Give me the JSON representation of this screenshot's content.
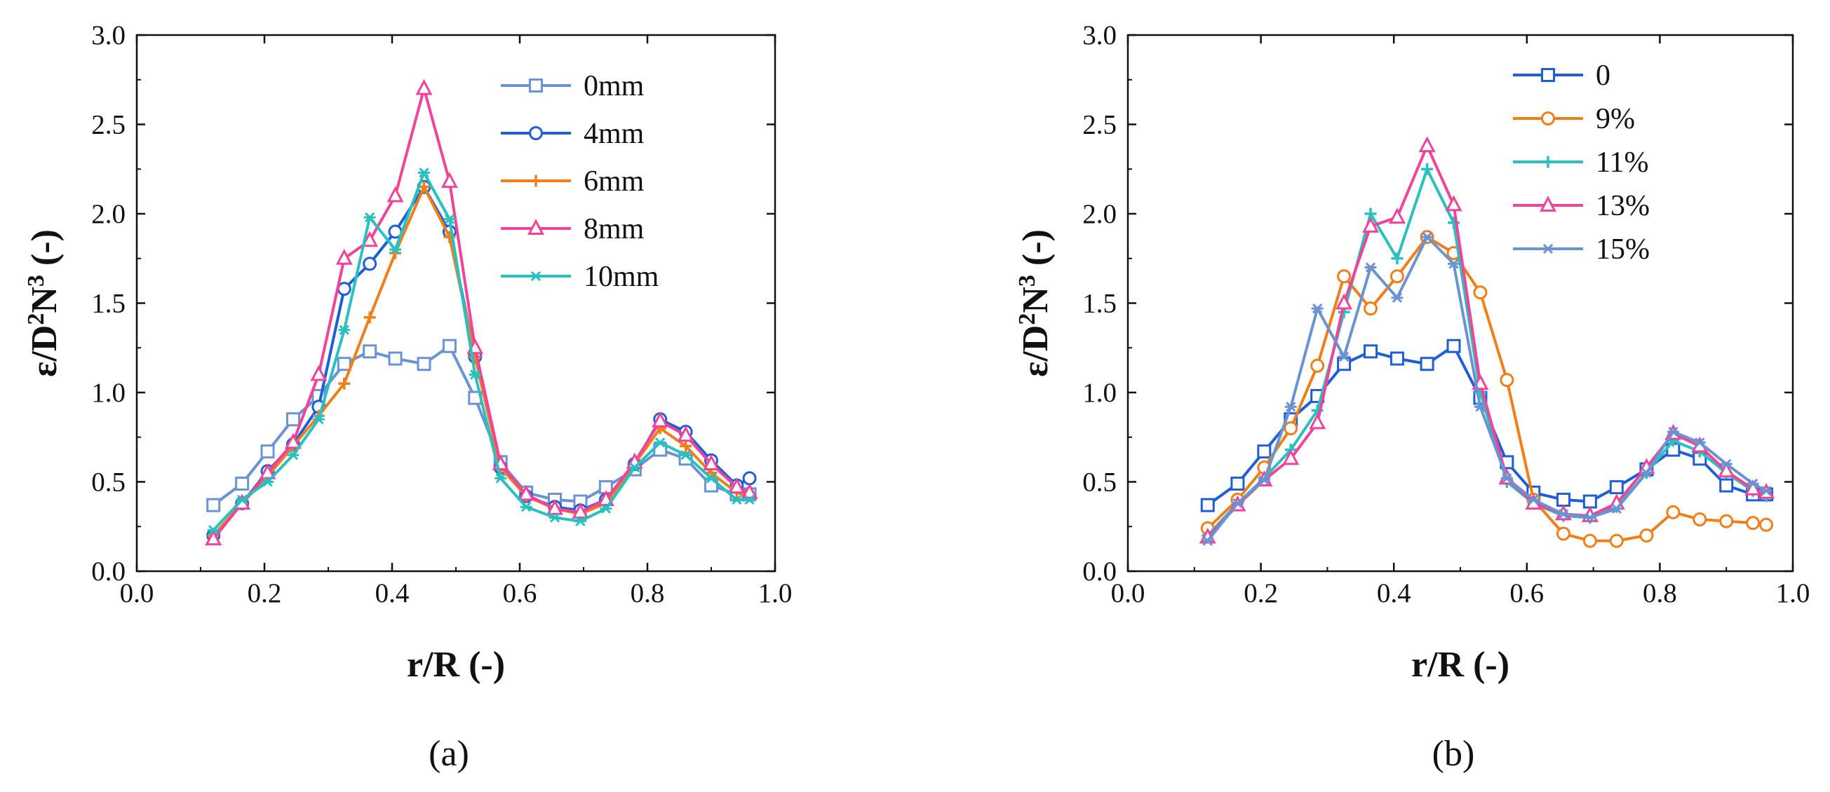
{
  "chart_data": [
    {
      "type": "line",
      "panel_label": "(a)",
      "xlabel": "r/R (-)",
      "ylabel_prefix": "ε/D",
      "ylabel_sup1": "2",
      "ylabel_mid": "N",
      "ylabel_sup2": "3",
      "ylabel_suffix": " (-)",
      "xlim": [
        0.0,
        1.0
      ],
      "ylim": [
        0.0,
        3.0
      ],
      "xticks": [
        "0.0",
        "0.2",
        "0.4",
        "0.6",
        "0.8",
        "1.0"
      ],
      "yticks": [
        "0.0",
        "0.5",
        "1.0",
        "1.5",
        "2.0",
        "2.5",
        "3.0"
      ],
      "legend_position": "top-right",
      "x": [
        0.12,
        0.165,
        0.205,
        0.245,
        0.285,
        0.325,
        0.365,
        0.405,
        0.45,
        0.49,
        0.53,
        0.57,
        0.61,
        0.655,
        0.695,
        0.735,
        0.78,
        0.82,
        0.86,
        0.9,
        0.94,
        0.96
      ],
      "series": [
        {
          "name": "0mm",
          "color": "#6a93d4",
          "marker": "square",
          "values": [
            0.37,
            0.49,
            0.67,
            0.85,
            0.98,
            1.16,
            1.23,
            1.19,
            1.16,
            1.26,
            0.97,
            0.61,
            0.44,
            0.4,
            0.39,
            0.47,
            0.57,
            0.68,
            0.63,
            0.48,
            0.43,
            0.43
          ]
        },
        {
          "name": "4mm",
          "color": "#1f5fd6",
          "marker": "circle",
          "values": [
            0.2,
            0.38,
            0.56,
            0.71,
            0.92,
            1.58,
            1.72,
            1.9,
            2.15,
            1.9,
            1.2,
            0.58,
            0.42,
            0.36,
            0.34,
            0.4,
            0.6,
            0.85,
            0.78,
            0.62,
            0.48,
            0.52
          ]
        },
        {
          "name": "6mm",
          "color": "#f07f1a",
          "marker": "plus",
          "values": [
            0.2,
            0.38,
            0.53,
            0.7,
            0.87,
            1.05,
            1.42,
            1.78,
            2.15,
            1.87,
            1.2,
            0.58,
            0.42,
            0.35,
            0.32,
            0.38,
            0.6,
            0.8,
            0.7,
            0.55,
            0.44,
            0.42
          ]
        },
        {
          "name": "8mm",
          "color": "#f0449a",
          "marker": "triangle",
          "values": [
            0.18,
            0.38,
            0.55,
            0.72,
            1.1,
            1.75,
            1.85,
            2.1,
            2.7,
            2.18,
            1.25,
            0.6,
            0.43,
            0.35,
            0.33,
            0.4,
            0.61,
            0.84,
            0.76,
            0.6,
            0.47,
            0.44
          ]
        },
        {
          "name": "10mm",
          "color": "#2ac0c0",
          "marker": "asterisk",
          "values": [
            0.23,
            0.4,
            0.5,
            0.65,
            0.85,
            1.35,
            1.98,
            1.8,
            2.23,
            1.97,
            1.1,
            0.52,
            0.36,
            0.3,
            0.28,
            0.35,
            0.58,
            0.72,
            0.65,
            0.52,
            0.4,
            0.4
          ]
        }
      ]
    },
    {
      "type": "line",
      "panel_label": "(b)",
      "xlabel": "r/R (-)",
      "ylabel_prefix": "ε/D",
      "ylabel_sup1": "2",
      "ylabel_mid": "N",
      "ylabel_sup2": "3",
      "ylabel_suffix": " (-)",
      "xlim": [
        0.0,
        1.0
      ],
      "ylim": [
        0.0,
        3.0
      ],
      "xticks": [
        "0.0",
        "0.2",
        "0.4",
        "0.6",
        "0.8",
        "1.0"
      ],
      "yticks": [
        "0.0",
        "0.5",
        "1.0",
        "1.5",
        "2.0",
        "2.5",
        "3.0"
      ],
      "legend_position": "top-right",
      "x": [
        0.12,
        0.165,
        0.205,
        0.245,
        0.285,
        0.325,
        0.365,
        0.405,
        0.45,
        0.49,
        0.53,
        0.57,
        0.61,
        0.655,
        0.695,
        0.735,
        0.78,
        0.82,
        0.86,
        0.9,
        0.94,
        0.96
      ],
      "series": [
        {
          "name": "0",
          "color": "#1f5fd6",
          "marker": "square",
          "values": [
            0.37,
            0.49,
            0.67,
            0.85,
            0.98,
            1.16,
            1.23,
            1.19,
            1.16,
            1.26,
            0.97,
            0.61,
            0.44,
            0.4,
            0.39,
            0.47,
            0.57,
            0.68,
            0.63,
            0.48,
            0.43,
            0.43
          ]
        },
        {
          "name": "9%",
          "color": "#f07f1a",
          "marker": "circle",
          "values": [
            0.24,
            0.4,
            0.58,
            0.8,
            1.15,
            1.65,
            1.47,
            1.65,
            1.87,
            1.78,
            1.56,
            1.07,
            0.4,
            0.21,
            0.17,
            0.17,
            0.2,
            0.33,
            0.29,
            0.28,
            0.27,
            0.26
          ]
        },
        {
          "name": "11%",
          "color": "#2ac0c0",
          "marker": "plus",
          "values": [
            0.2,
            0.38,
            0.52,
            0.68,
            0.9,
            1.45,
            2.0,
            1.75,
            2.25,
            1.95,
            1.0,
            0.5,
            0.38,
            0.31,
            0.3,
            0.36,
            0.55,
            0.73,
            0.67,
            0.55,
            0.45,
            0.42
          ]
        },
        {
          "name": "13%",
          "color": "#f0449a",
          "marker": "triangle",
          "values": [
            0.19,
            0.37,
            0.51,
            0.63,
            0.83,
            1.5,
            1.93,
            1.98,
            2.38,
            2.05,
            1.05,
            0.52,
            0.38,
            0.32,
            0.31,
            0.38,
            0.58,
            0.77,
            0.7,
            0.56,
            0.46,
            0.44
          ]
        },
        {
          "name": "15%",
          "color": "#6a93d4",
          "marker": "asterisk",
          "values": [
            0.17,
            0.38,
            0.51,
            0.92,
            1.47,
            1.2,
            1.7,
            1.53,
            1.87,
            1.72,
            0.92,
            0.52,
            0.4,
            0.32,
            0.3,
            0.35,
            0.55,
            0.78,
            0.72,
            0.6,
            0.49,
            0.45
          ]
        }
      ]
    }
  ]
}
